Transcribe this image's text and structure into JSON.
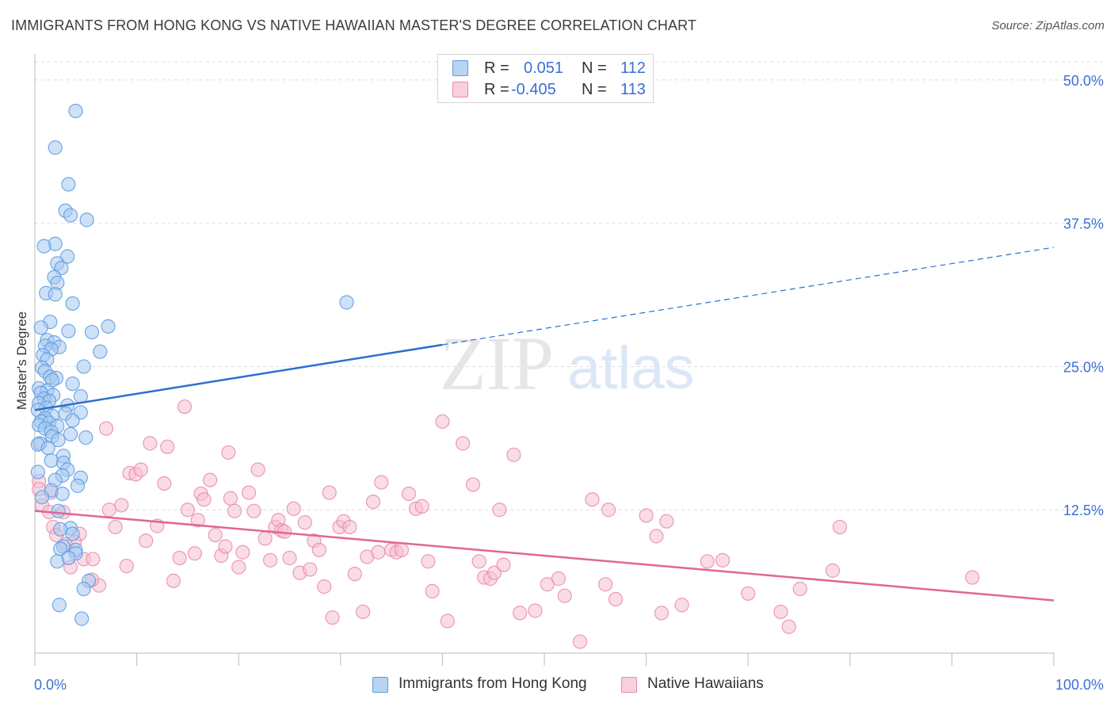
{
  "title": "IMMIGRANTS FROM HONG KONG VS NATIVE HAWAIIAN MASTER'S DEGREE CORRELATION CHART",
  "source": "Source: ZipAtlas.com",
  "watermark": {
    "zip": "ZIP",
    "atlas": "atlas"
  },
  "colors": {
    "blue_fill": "#a8c8f0",
    "blue_stroke": "#5b9be0",
    "blue_line": "#2c6fcf",
    "pink_fill": "#f6c0d2",
    "pink_stroke": "#e889aa",
    "pink_line": "#e0659a",
    "tick_label": "#3b6fd4",
    "grid": "#dcdcdc"
  },
  "legend": [
    {
      "r_label": "R =",
      "r_value": "0.051",
      "n_label": "N =",
      "n_value": "112"
    },
    {
      "r_label": "R =",
      "r_value": "-0.405",
      "n_label": "N =",
      "n_value": "113"
    }
  ],
  "chart_data": {
    "type": "scatter",
    "title": "IMMIGRANTS FROM HONG KONG VS NATIVE HAWAIIAN MASTER'S DEGREE CORRELATION CHART",
    "xlabel": "",
    "ylabel": "Master's Degree",
    "xlim": [
      0,
      100
    ],
    "ylim": [
      0,
      52
    ],
    "x_tick_labels": [
      "0.0%",
      "100.0%"
    ],
    "y_ticks": [
      12.5,
      25.0,
      37.5,
      50.0
    ],
    "y_tick_labels": [
      "12.5%",
      "25.0%",
      "37.5%",
      "50.0%"
    ],
    "grid": true,
    "legend_position": "bottom",
    "series": [
      {
        "name": "Immigrants from Hong Kong",
        "color": "#a8c8f0",
        "trend": {
          "x": [
            0,
            40
          ],
          "y": [
            21.2,
            26.9
          ],
          "dashed_to": [
            100,
            35.4
          ]
        },
        "points": [
          [
            4.0,
            47.3
          ],
          [
            2.0,
            44.1
          ],
          [
            3.3,
            40.9
          ],
          [
            3.0,
            38.6
          ],
          [
            3.5,
            38.2
          ],
          [
            5.1,
            37.8
          ],
          [
            2.0,
            35.7
          ],
          [
            0.9,
            35.5
          ],
          [
            3.2,
            34.6
          ],
          [
            2.2,
            34.0
          ],
          [
            2.6,
            33.6
          ],
          [
            1.9,
            32.8
          ],
          [
            2.2,
            32.3
          ],
          [
            1.1,
            31.4
          ],
          [
            2.0,
            31.3
          ],
          [
            3.7,
            30.5
          ],
          [
            30.6,
            30.6
          ],
          [
            1.5,
            28.9
          ],
          [
            7.2,
            28.5
          ],
          [
            0.6,
            28.4
          ],
          [
            3.3,
            28.1
          ],
          [
            5.6,
            28.0
          ],
          [
            1.2,
            27.3
          ],
          [
            1.9,
            27.1
          ],
          [
            1.0,
            26.8
          ],
          [
            2.4,
            26.7
          ],
          [
            1.6,
            26.5
          ],
          [
            6.4,
            26.3
          ],
          [
            0.8,
            26.0
          ],
          [
            1.2,
            25.6
          ],
          [
            4.8,
            25.0
          ],
          [
            0.7,
            24.9
          ],
          [
            1.0,
            24.6
          ],
          [
            1.5,
            24.1
          ],
          [
            2.1,
            24.0
          ],
          [
            1.7,
            23.8
          ],
          [
            3.7,
            23.5
          ],
          [
            0.4,
            23.1
          ],
          [
            1.2,
            22.9
          ],
          [
            0.6,
            22.7
          ],
          [
            1.8,
            22.5
          ],
          [
            4.5,
            22.4
          ],
          [
            0.9,
            22.2
          ],
          [
            1.4,
            22.0
          ],
          [
            0.4,
            21.8
          ],
          [
            3.2,
            21.6
          ],
          [
            1.1,
            21.4
          ],
          [
            0.3,
            21.2
          ],
          [
            4.5,
            21.0
          ],
          [
            3.0,
            20.9
          ],
          [
            1.7,
            20.7
          ],
          [
            1.0,
            20.5
          ],
          [
            3.7,
            20.3
          ],
          [
            0.6,
            20.2
          ],
          [
            1.4,
            20.1
          ],
          [
            0.4,
            19.9
          ],
          [
            2.2,
            19.8
          ],
          [
            1.0,
            19.6
          ],
          [
            1.6,
            19.3
          ],
          [
            3.5,
            19.1
          ],
          [
            5.0,
            18.8
          ],
          [
            1.7,
            18.9
          ],
          [
            2.3,
            18.6
          ],
          [
            0.5,
            18.3
          ],
          [
            0.3,
            18.2
          ],
          [
            1.3,
            17.9
          ],
          [
            2.8,
            17.2
          ],
          [
            1.6,
            16.8
          ],
          [
            2.8,
            16.6
          ],
          [
            3.2,
            16.0
          ],
          [
            0.3,
            15.8
          ],
          [
            2.7,
            15.5
          ],
          [
            4.5,
            15.3
          ],
          [
            2.0,
            15.1
          ],
          [
            4.2,
            14.6
          ],
          [
            1.6,
            14.2
          ],
          [
            2.7,
            13.9
          ],
          [
            0.7,
            13.6
          ],
          [
            2.3,
            12.4
          ],
          [
            3.5,
            10.9
          ],
          [
            2.5,
            10.8
          ],
          [
            3.7,
            10.4
          ],
          [
            2.8,
            9.3
          ],
          [
            2.5,
            9.1
          ],
          [
            4.0,
            9.0
          ],
          [
            4.0,
            8.7
          ],
          [
            3.3,
            8.3
          ],
          [
            2.2,
            8.0
          ],
          [
            5.3,
            6.3
          ],
          [
            4.8,
            5.6
          ],
          [
            2.4,
            4.2
          ],
          [
            4.6,
            3.0
          ]
        ]
      },
      {
        "name": "Native Hawaiians",
        "color": "#f6c0d2",
        "trend": {
          "x": [
            0,
            100
          ],
          "y": [
            12.4,
            4.6
          ]
        },
        "points": [
          [
            0.4,
            15.0
          ],
          [
            0.4,
            14.3
          ],
          [
            1.6,
            14.0
          ],
          [
            0.7,
            12.9
          ],
          [
            1.4,
            12.3
          ],
          [
            2.8,
            12.3
          ],
          [
            1.8,
            11.0
          ],
          [
            2.1,
            10.3
          ],
          [
            4.4,
            10.4
          ],
          [
            3.9,
            9.7
          ],
          [
            3.0,
            9.5
          ],
          [
            3.5,
            7.5
          ],
          [
            4.8,
            8.2
          ],
          [
            5.7,
            8.2
          ],
          [
            6.3,
            5.9
          ],
          [
            5.6,
            6.4
          ],
          [
            7.0,
            19.6
          ],
          [
            7.3,
            12.5
          ],
          [
            7.9,
            11.0
          ],
          [
            8.5,
            12.9
          ],
          [
            9.0,
            7.6
          ],
          [
            9.3,
            15.7
          ],
          [
            9.9,
            15.6
          ],
          [
            10.4,
            16.0
          ],
          [
            10.9,
            9.8
          ],
          [
            11.3,
            18.3
          ],
          [
            12.0,
            11.1
          ],
          [
            12.7,
            14.8
          ],
          [
            13.0,
            18.0
          ],
          [
            13.6,
            6.3
          ],
          [
            14.2,
            8.3
          ],
          [
            14.7,
            21.5
          ],
          [
            15.0,
            12.5
          ],
          [
            15.7,
            8.7
          ],
          [
            16.0,
            11.6
          ],
          [
            16.3,
            13.9
          ],
          [
            16.6,
            13.4
          ],
          [
            17.2,
            15.1
          ],
          [
            17.7,
            10.3
          ],
          [
            18.3,
            8.5
          ],
          [
            18.7,
            9.3
          ],
          [
            19.0,
            17.5
          ],
          [
            19.2,
            13.5
          ],
          [
            19.6,
            12.4
          ],
          [
            20.0,
            7.5
          ],
          [
            20.4,
            8.8
          ],
          [
            21.0,
            14.0
          ],
          [
            21.5,
            12.4
          ],
          [
            21.9,
            16.0
          ],
          [
            22.6,
            10.0
          ],
          [
            23.1,
            8.1
          ],
          [
            23.6,
            11.0
          ],
          [
            23.9,
            11.6
          ],
          [
            24.2,
            10.7
          ],
          [
            24.5,
            10.6
          ],
          [
            25.0,
            8.3
          ],
          [
            25.4,
            12.6
          ],
          [
            26.0,
            7.0
          ],
          [
            26.5,
            11.4
          ],
          [
            27.0,
            7.3
          ],
          [
            27.4,
            9.8
          ],
          [
            27.9,
            9.0
          ],
          [
            28.4,
            5.8
          ],
          [
            28.9,
            14.0
          ],
          [
            29.2,
            3.1
          ],
          [
            29.9,
            11.0
          ],
          [
            30.3,
            11.5
          ],
          [
            30.9,
            11.0
          ],
          [
            31.4,
            6.9
          ],
          [
            32.2,
            3.6
          ],
          [
            32.6,
            8.4
          ],
          [
            33.2,
            13.2
          ],
          [
            33.7,
            8.8
          ],
          [
            34.0,
            14.9
          ],
          [
            35.0,
            9.0
          ],
          [
            35.5,
            8.8
          ],
          [
            36.0,
            9.0
          ],
          [
            36.7,
            13.9
          ],
          [
            37.4,
            12.6
          ],
          [
            38.0,
            12.8
          ],
          [
            38.6,
            8.0
          ],
          [
            39.0,
            5.4
          ],
          [
            40.0,
            20.2
          ],
          [
            40.5,
            2.8
          ],
          [
            42.0,
            18.3
          ],
          [
            43.0,
            14.7
          ],
          [
            43.6,
            8.0
          ],
          [
            44.1,
            6.6
          ],
          [
            44.7,
            6.5
          ],
          [
            45.1,
            7.0
          ],
          [
            45.6,
            12.5
          ],
          [
            46.0,
            7.7
          ],
          [
            47.0,
            17.3
          ],
          [
            47.6,
            3.5
          ],
          [
            49.1,
            3.7
          ],
          [
            50.3,
            6.0
          ],
          [
            51.4,
            6.5
          ],
          [
            52.0,
            5.0
          ],
          [
            53.5,
            1.0
          ],
          [
            54.7,
            13.4
          ],
          [
            56.0,
            6.0
          ],
          [
            56.3,
            12.5
          ],
          [
            57.0,
            4.7
          ],
          [
            60.0,
            12.0
          ],
          [
            61.0,
            10.2
          ],
          [
            61.5,
            3.5
          ],
          [
            62.0,
            11.5
          ],
          [
            63.5,
            4.2
          ],
          [
            66.0,
            8.0
          ],
          [
            67.5,
            8.1
          ],
          [
            70.0,
            5.2
          ],
          [
            73.2,
            3.6
          ],
          [
            74.0,
            2.3
          ],
          [
            75.1,
            5.6
          ],
          [
            79.0,
            11.0
          ],
          [
            78.3,
            7.2
          ],
          [
            92.0,
            6.6
          ]
        ]
      }
    ]
  }
}
